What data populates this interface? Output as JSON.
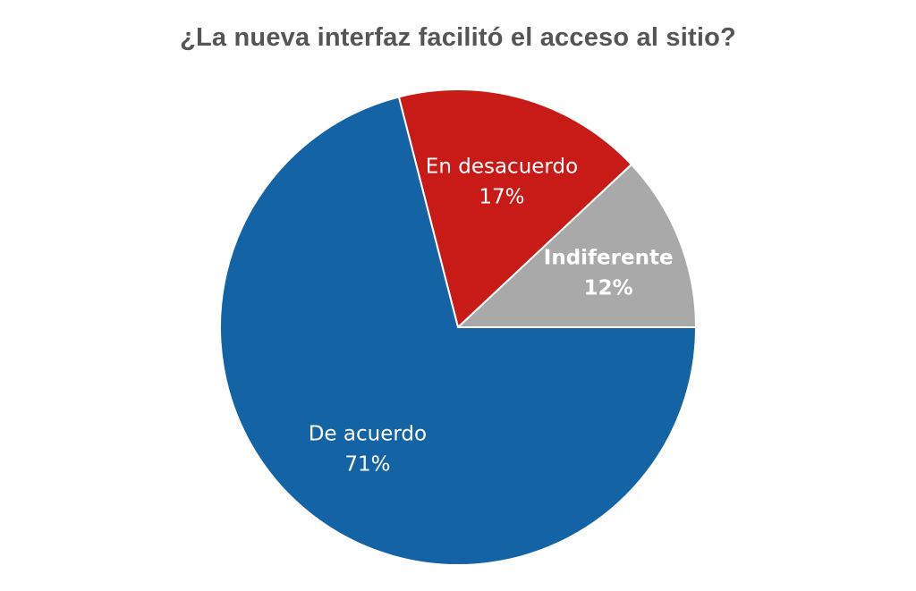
{
  "chart_data": {
    "type": "pie",
    "title": "¿La nueva interfaz facilitó el acceso al sitio?",
    "slices": [
      {
        "label": "De acuerdo",
        "value": 71,
        "value_label": "71%",
        "color": "#1464a5",
        "text_color": "#ffffff"
      },
      {
        "label": "En desacuerdo",
        "value": 17,
        "value_label": "17%",
        "color": "#c81a17",
        "text_color": "#ffffff"
      },
      {
        "label": "Indiferente",
        "value": 12,
        "value_label": "12%",
        "color": "#a9a9a9",
        "text_color": "#ffffff"
      }
    ],
    "start_angle": "east, counterclockwise order: Indiferente, En desacuerdo, De acuerdo",
    "legend": "none"
  }
}
